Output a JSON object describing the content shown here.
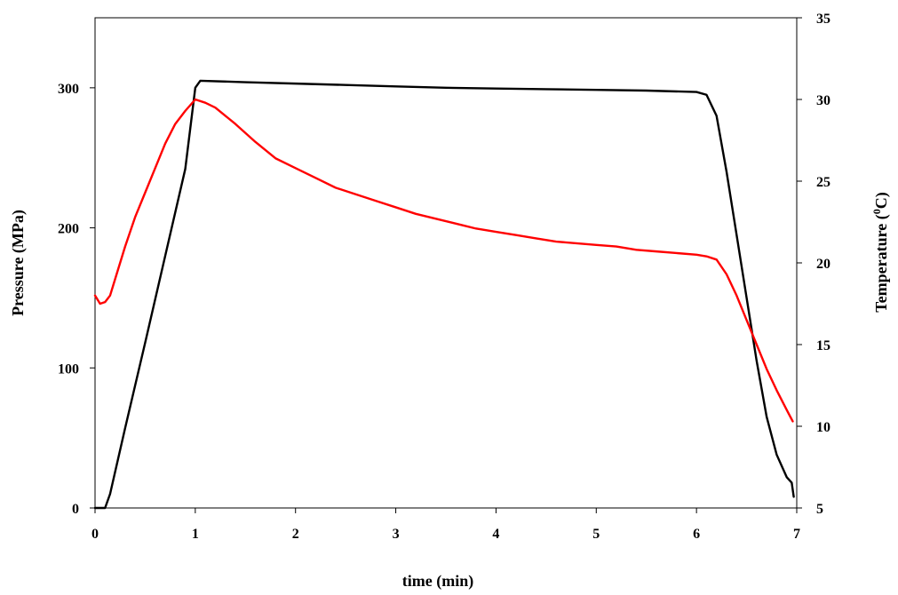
{
  "chart_data": {
    "type": "line",
    "xlabel": "time (min)",
    "ylabel_left": "Pressure (MPa)",
    "ylabel_right_prefix": "Temperature (",
    "ylabel_right_sup": "0",
    "ylabel_right_suffix": "C)",
    "xlim": [
      0,
      7
    ],
    "ylim_left": [
      0,
      350
    ],
    "ylim_right": [
      5,
      35
    ],
    "x_ticks": [
      "0",
      "1",
      "2",
      "3",
      "4",
      "5",
      "6",
      "7"
    ],
    "y_left_ticks": [
      "0",
      "100",
      "200",
      "300"
    ],
    "y_right_ticks": [
      "5",
      "10",
      "15",
      "20",
      "25",
      "30",
      "35"
    ],
    "grid": false,
    "legend": "none",
    "series": [
      {
        "axis": "left",
        "color": "#000000",
        "x": [
          0.0,
          0.1,
          0.15,
          0.3,
          0.5,
          0.7,
          0.9,
          1.0,
          1.05,
          1.5,
          2.0,
          2.5,
          3.0,
          3.5,
          4.0,
          4.5,
          5.0,
          5.5,
          6.0,
          6.1,
          6.2,
          6.3,
          6.4,
          6.5,
          6.6,
          6.7,
          6.8,
          6.9,
          6.95,
          6.97
        ],
        "y": [
          0,
          0,
          10,
          57,
          118,
          180,
          242,
          300,
          305,
          304,
          303,
          302,
          301,
          300,
          299.5,
          299,
          298.5,
          298,
          297,
          295,
          280,
          240,
          195,
          150,
          105,
          65,
          38,
          22,
          18,
          8
        ]
      },
      {
        "axis": "right",
        "color": "#ff0000",
        "x": [
          0.0,
          0.05,
          0.1,
          0.15,
          0.2,
          0.3,
          0.4,
          0.5,
          0.6,
          0.7,
          0.8,
          0.9,
          1.0,
          1.1,
          1.2,
          1.4,
          1.6,
          1.8,
          2.0,
          2.2,
          2.4,
          2.6,
          2.8,
          3.0,
          3.2,
          3.4,
          3.6,
          3.8,
          4.0,
          4.2,
          4.4,
          4.6,
          4.8,
          5.0,
          5.2,
          5.4,
          5.6,
          5.8,
          6.0,
          6.1,
          6.2,
          6.3,
          6.4,
          6.5,
          6.6,
          6.7,
          6.8,
          6.9,
          6.96
        ],
        "y": [
          18,
          17.5,
          17.6,
          18,
          19,
          21,
          22.8,
          24.3,
          25.8,
          27.3,
          28.5,
          29.3,
          30,
          29.8,
          29.5,
          28.5,
          27.4,
          26.4,
          25.8,
          25.2,
          24.6,
          24.2,
          23.8,
          23.4,
          23.0,
          22.7,
          22.4,
          22.1,
          21.9,
          21.7,
          21.5,
          21.3,
          21.2,
          21.1,
          21.0,
          20.8,
          20.7,
          20.6,
          20.5,
          20.4,
          20.2,
          19.3,
          18.0,
          16.5,
          15.0,
          13.5,
          12.2,
          11.0,
          10.3
        ]
      }
    ]
  }
}
